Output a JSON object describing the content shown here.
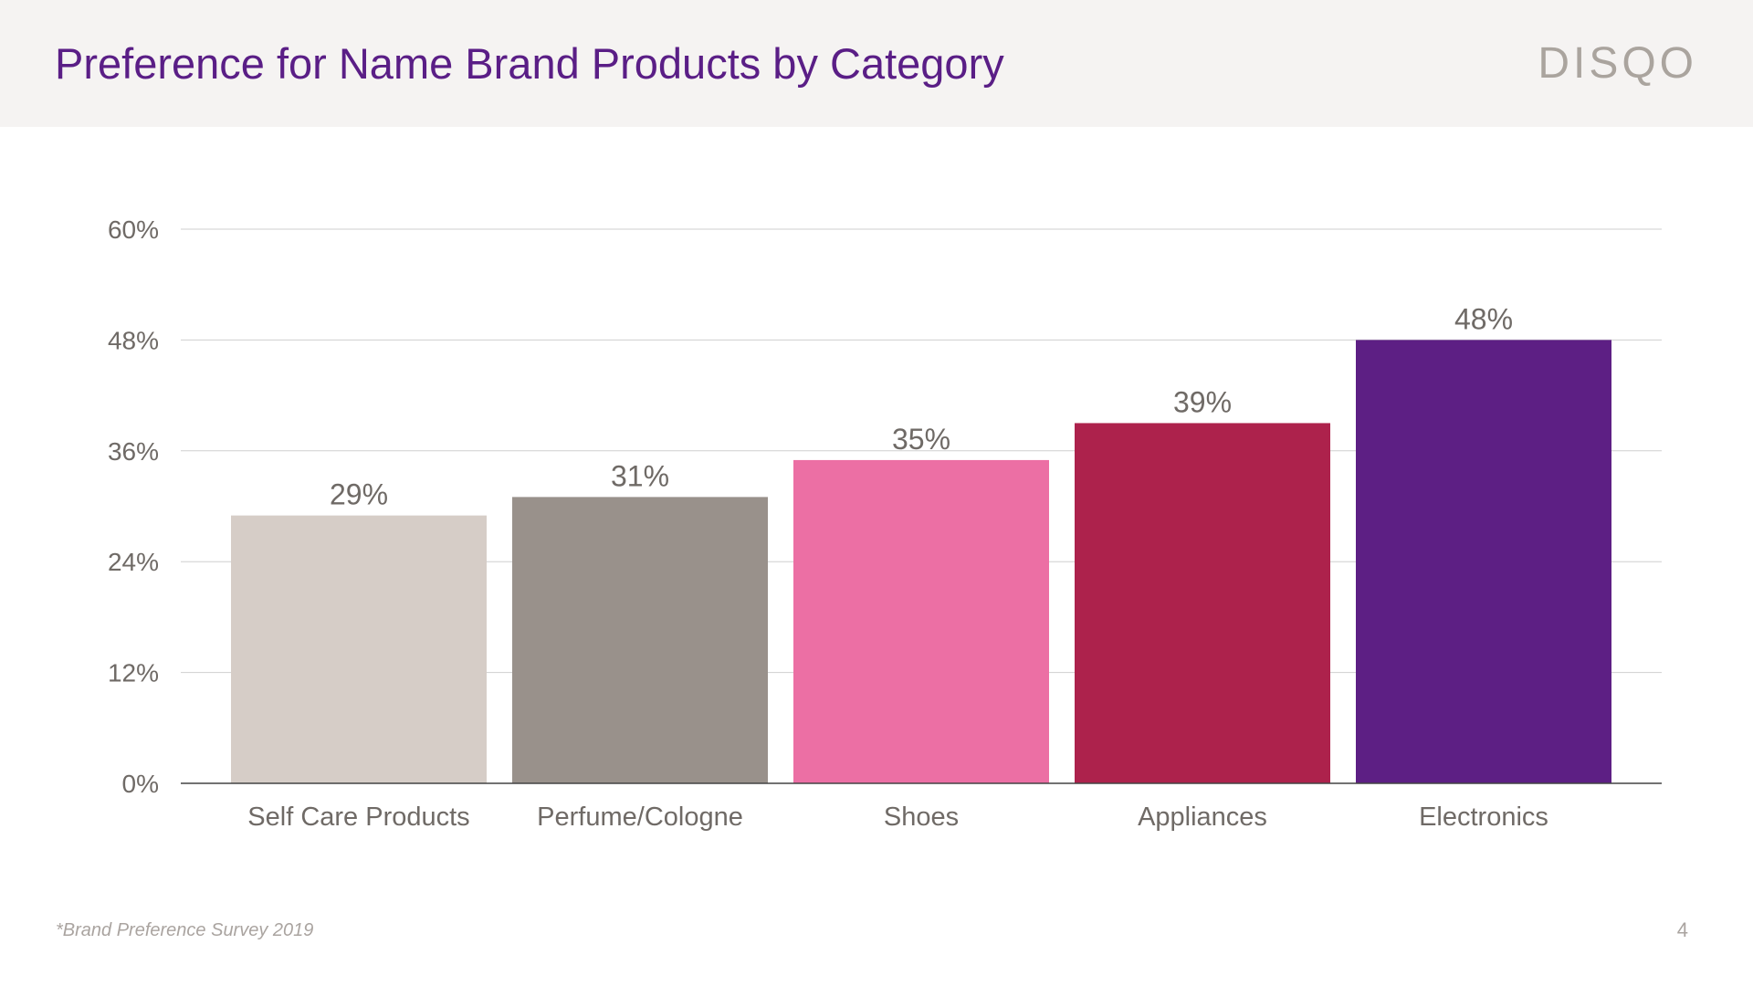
{
  "slide": {
    "title": "Preference for Name Brand Products by Category",
    "logo": "DISQO",
    "footnote": "*Brand Preference Survey 2019",
    "page_number": "4"
  },
  "colors": {
    "title": "#5a1e86",
    "header_band": "#f5f3f2",
    "logo": "#aaa49e",
    "text_gray": "#6f6a66",
    "footnote_gray": "#aaa4a0",
    "grid": "#cfcfcf",
    "axis": "#444444"
  },
  "chart_data": {
    "type": "bar",
    "title": "",
    "xlabel": "",
    "ylabel": "",
    "categories": [
      "Self Care Products",
      "Perfume/Cologne",
      "Shoes",
      "Appliances",
      "Electronics"
    ],
    "values": [
      29,
      31,
      35,
      39,
      48
    ],
    "value_labels": [
      "29%",
      "31%",
      "35%",
      "39%",
      "48%"
    ],
    "bar_colors": [
      "#d6cdc7",
      "#99918b",
      "#ec6fa4",
      "#ad224c",
      "#5d1f84"
    ],
    "ylim": [
      0,
      60
    ],
    "yticks": [
      0,
      12,
      24,
      36,
      48,
      60
    ],
    "ytick_labels": [
      "0%",
      "12%",
      "24%",
      "36%",
      "48%",
      "60%"
    ],
    "grid": true,
    "legend": "none"
  }
}
